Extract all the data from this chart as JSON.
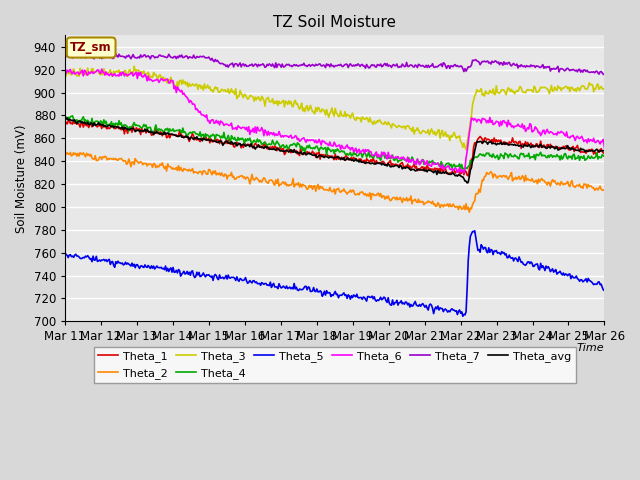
{
  "title": "TZ Soil Moisture",
  "ylabel": "Soil Moisture (mV)",
  "xlabel": "Time",
  "ylim": [
    700,
    950
  ],
  "bg_color": "#d8d8d8",
  "plot_bg_color": "#e8e8e8",
  "grid_color": "#ffffff",
  "legend_box_color": "#ffffcc",
  "legend_box_edge": "#aa8800",
  "tz_sm_label": "TZ_sm",
  "series_colors": {
    "Theta_1": "#dd0000",
    "Theta_2": "#ff8800",
    "Theta_3": "#cccc00",
    "Theta_4": "#00aa00",
    "Theta_5": "#0000ee",
    "Theta_6": "#ff00ff",
    "Theta_7": "#9900cc",
    "Theta_avg": "#000000"
  },
  "x_labels": [
    "Mar 11",
    "Mar 12",
    "Mar 13",
    "Mar 14",
    "Mar 15",
    "Mar 16",
    "Mar 17",
    "Mar 18",
    "Mar 19",
    "Mar 20",
    "Mar 21",
    "Mar 22",
    "Mar 23",
    "Mar 24",
    "Mar 25",
    "Mar 26"
  ]
}
